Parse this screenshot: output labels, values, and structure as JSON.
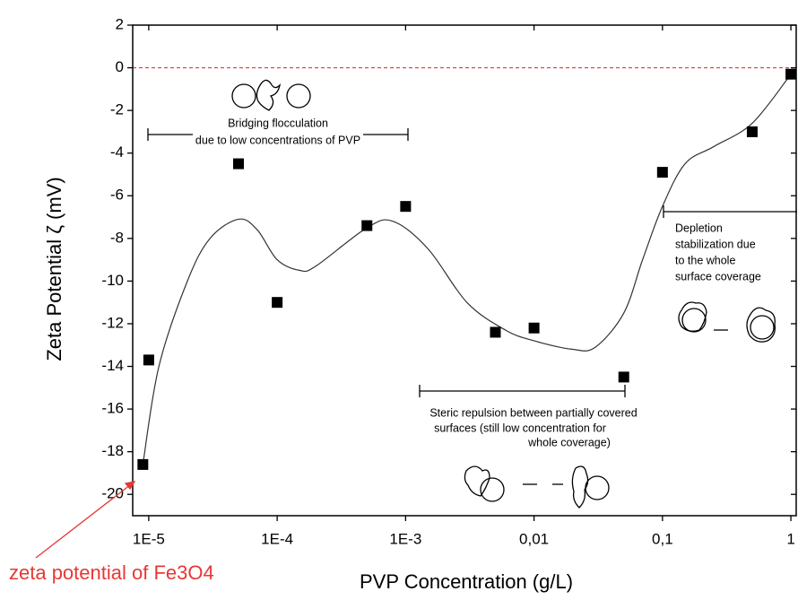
{
  "chart_data": {
    "type": "scatter",
    "x_label": "PVP Concentration (g/L)",
    "y_label": "Zeta Potential ζ (mV)",
    "x_scale": "log",
    "xlim": [
      7.5e-06,
      1.1
    ],
    "ylim": [
      -21,
      2
    ],
    "xticks": [
      {
        "value": 1e-05,
        "label": "1E-5"
      },
      {
        "value": 0.0001,
        "label": "1E-4"
      },
      {
        "value": 0.001,
        "label": "1E-3"
      },
      {
        "value": 0.01,
        "label": "0,01"
      },
      {
        "value": 0.1,
        "label": "0,1"
      },
      1
    ],
    "yticks": [
      2,
      0,
      -2,
      -4,
      -6,
      -8,
      -10,
      -12,
      -14,
      -16,
      -18,
      -20
    ],
    "reference_line": {
      "y": 0,
      "color": "#e53935"
    },
    "series": [
      {
        "color": "#000000",
        "x": [
          9e-06,
          1e-05,
          5e-05,
          0.0001,
          0.0005,
          0.001,
          0.005,
          0.01,
          0.05,
          0.1,
          0.5,
          1
        ],
        "values": [
          -18.6,
          -13.7,
          -4.5,
          -11,
          -7.4,
          -6.5,
          -12.4,
          -12.2,
          -14.5,
          -4.9,
          -3.0,
          -0.3
        ]
      }
    ],
    "fit": {
      "color": "#333333",
      "x": [
        9e-06,
        1.2e-05,
        2e-05,
        3e-05,
        5e-05,
        7e-05,
        0.0001,
        0.00015,
        0.0002,
        0.0005,
        0.0008,
        0.0015,
        0.003,
        0.006,
        0.01,
        0.02,
        0.03,
        0.05,
        0.07,
        0.1,
        0.15,
        0.25,
        0.5,
        1
      ],
      "values": [
        -18.6,
        -14,
        -10,
        -8,
        -7.1,
        -7.6,
        -9,
        -9.5,
        -9.3,
        -7.5,
        -7.2,
        -8.5,
        -11,
        -12.3,
        -12.8,
        -13.2,
        -13.1,
        -11.5,
        -9,
        -6.5,
        -4.5,
        -3.7,
        -2.6,
        -0.3
      ]
    },
    "annotations": [
      "Bridging flocculation",
      "due to low concentrations of PVP",
      "Depletion",
      "stabilization due",
      "to the whole",
      "surface coverage",
      "Steric repulsion between partially covered",
      "surfaces (still low concentration for",
      "whole coverage)",
      "zeta potential of Fe3O4"
    ]
  }
}
